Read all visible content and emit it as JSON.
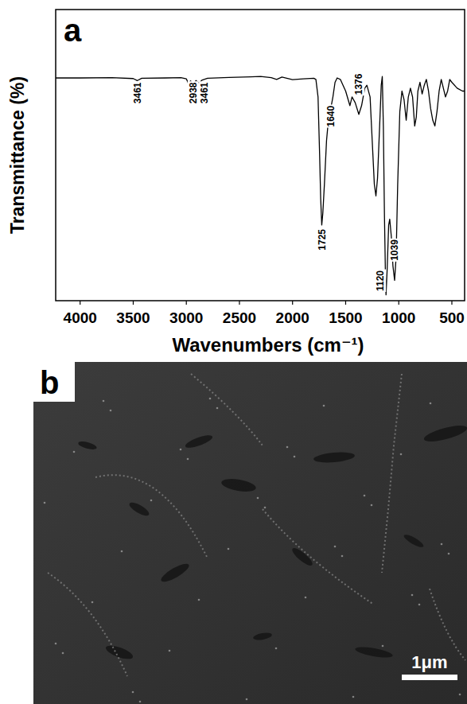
{
  "chart_data": {
    "type": "line",
    "panel_label": "a",
    "x_label": "Wavenumbers (cm⁻¹)",
    "y_label": "Transmittance (%)",
    "xlim": [
      4230,
      380
    ],
    "ylim": [
      0,
      100
    ],
    "xticks": [
      4000,
      3500,
      3000,
      2500,
      2000,
      1500,
      1000,
      500
    ],
    "tick_labels": "x",
    "grid": false,
    "color": "#000000",
    "x": [
      4230,
      4000,
      3700,
      3500,
      3461,
      3420,
      3200,
      3050,
      3000,
      2980,
      2960,
      2938,
      2910,
      2880,
      2850,
      2800,
      2600,
      2400,
      2300,
      2200,
      2150,
      2100,
      2000,
      1900,
      1800,
      1780,
      1760,
      1745,
      1735,
      1725,
      1715,
      1700,
      1680,
      1660,
      1640,
      1620,
      1600,
      1580,
      1550,
      1500,
      1460,
      1440,
      1410,
      1376,
      1350,
      1320,
      1300,
      1270,
      1250,
      1230,
      1215,
      1200,
      1180,
      1165,
      1155,
      1145,
      1135,
      1125,
      1120,
      1110,
      1095,
      1085,
      1070,
      1055,
      1039,
      1025,
      1010,
      990,
      970,
      950,
      930,
      910,
      890,
      870,
      850,
      835,
      820,
      800,
      780,
      760,
      740,
      720,
      700,
      680,
      660,
      640,
      620,
      600,
      580,
      560,
      540,
      520,
      500,
      450,
      400,
      380
    ],
    "values": [
      76.5,
      76.5,
      76.6,
      76.3,
      75.6,
      76.4,
      76.5,
      76.6,
      76.2,
      74.5,
      75.5,
      74.0,
      75.6,
      74.8,
      75.8,
      76.4,
      76.7,
      76.9,
      77.0,
      76.6,
      76.0,
      76.8,
      75.9,
      76.2,
      76.4,
      76.0,
      70,
      50,
      35,
      26,
      30,
      40,
      55,
      63,
      66,
      70,
      75,
      76.5,
      76,
      72,
      67,
      70,
      68,
      64,
      67,
      73,
      74,
      70,
      55,
      40,
      36,
      42,
      60,
      74,
      77,
      60,
      30,
      8,
      2,
      10,
      26,
      28,
      22,
      12,
      7,
      15,
      40,
      65,
      72,
      69,
      62,
      70,
      73,
      70,
      60,
      63,
      72,
      75,
      71,
      74,
      76,
      72,
      66,
      62,
      60,
      65,
      72,
      76,
      73,
      70,
      72,
      76,
      75,
      73,
      72,
      72
    ],
    "annotations": [
      {
        "text": "3461",
        "x": 3461,
        "y": 75
      },
      {
        "text": "2938",
        "x": 2938,
        "y": 75
      },
      {
        "text": "3461",
        "x": 2830,
        "y": 75
      },
      {
        "text": "1640",
        "x": 1640,
        "y": 67
      },
      {
        "text": "1376",
        "x": 1376,
        "y": 78
      },
      {
        "text": "1725",
        "x": 1725,
        "y": 24.6
      },
      {
        "text": "1120",
        "x": 1174,
        "y": 10.4
      },
      {
        "text": "1039",
        "x": 1039,
        "y": 21
      }
    ]
  },
  "image_panel": {
    "label": "b",
    "scale_bar": "1μm"
  }
}
